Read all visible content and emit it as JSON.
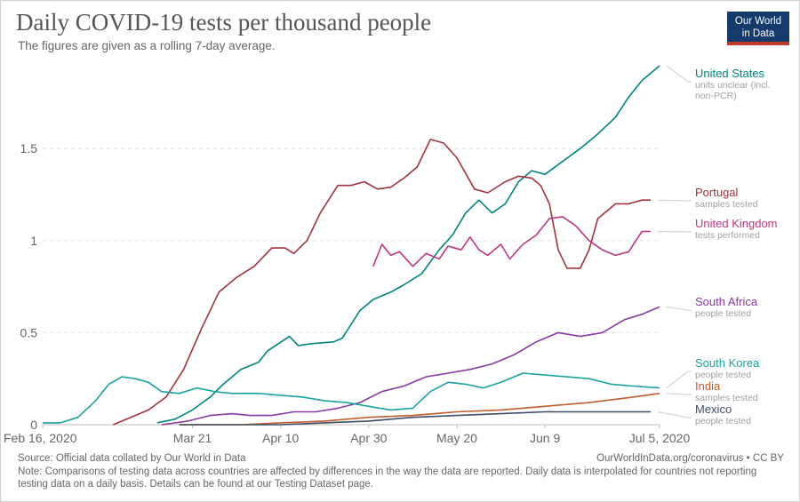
{
  "header": {
    "title": "Daily COVID-19 tests per thousand people",
    "subtitle": "The figures are given as a rolling 7-day average.",
    "logo_line1": "Our World",
    "logo_line2": "in Data"
  },
  "footer": {
    "source": "Source: Official data collated by Our World in Data",
    "url": "OurWorldInData.org/coronavirus • CC BY",
    "note": "Note: Comparisons of testing data across countries are affected by differences in the way the data are reported. Daily data is interpolated for countries not reporting testing data on a daily basis. Details can be found at our Testing Dataset page."
  },
  "chart_data": {
    "type": "line",
    "title": "Daily COVID-19 tests per thousand people",
    "subtitle": "The figures are given as a rolling 7-day average.",
    "xlabel": "",
    "ylabel": "",
    "x_range": [
      "2020-02-16",
      "2020-07-05"
    ],
    "ylim": [
      0,
      1.95
    ],
    "x_ticks": [
      {
        "date": "2020-02-16",
        "label": "Feb 16, 2020"
      },
      {
        "date": "2020-03-21",
        "label": "Mar 21"
      },
      {
        "date": "2020-04-10",
        "label": "Apr 10"
      },
      {
        "date": "2020-04-30",
        "label": "Apr 30"
      },
      {
        "date": "2020-05-20",
        "label": "May 20"
      },
      {
        "date": "2020-06-09",
        "label": "Jun 9"
      },
      {
        "date": "2020-07-05",
        "label": "Jul 5, 2020"
      }
    ],
    "y_ticks": [
      {
        "value": 0,
        "label": "0"
      },
      {
        "value": 0.5,
        "label": "0.5"
      },
      {
        "value": 1,
        "label": "1"
      },
      {
        "value": 1.5,
        "label": "1.5"
      }
    ],
    "grid": "horizontal-dashed",
    "legend": "right (line-end labels)",
    "series": [
      {
        "name": "United States",
        "note": "units unclear (incl. non-PCR)",
        "color": "#00847e",
        "points": [
          [
            "2020-03-13",
            0.01
          ],
          [
            "2020-03-17",
            0.03
          ],
          [
            "2020-03-21",
            0.08
          ],
          [
            "2020-03-25",
            0.15
          ],
          [
            "2020-03-28",
            0.22
          ],
          [
            "2020-04-01",
            0.3
          ],
          [
            "2020-04-05",
            0.34
          ],
          [
            "2020-04-07",
            0.4
          ],
          [
            "2020-04-12",
            0.48
          ],
          [
            "2020-04-14",
            0.43
          ],
          [
            "2020-04-17",
            0.44
          ],
          [
            "2020-04-22",
            0.45
          ],
          [
            "2020-04-24",
            0.47
          ],
          [
            "2020-04-28",
            0.62
          ],
          [
            "2020-05-01",
            0.68
          ],
          [
            "2020-05-05",
            0.72
          ],
          [
            "2020-05-08",
            0.76
          ],
          [
            "2020-05-12",
            0.82
          ],
          [
            "2020-05-16",
            0.95
          ],
          [
            "2020-05-19",
            1.03
          ],
          [
            "2020-05-22",
            1.15
          ],
          [
            "2020-05-25",
            1.22
          ],
          [
            "2020-05-28",
            1.15
          ],
          [
            "2020-05-31",
            1.2
          ],
          [
            "2020-06-03",
            1.32
          ],
          [
            "2020-06-06",
            1.38
          ],
          [
            "2020-06-09",
            1.36
          ],
          [
            "2020-06-13",
            1.43
          ],
          [
            "2020-06-17",
            1.5
          ],
          [
            "2020-06-21",
            1.58
          ],
          [
            "2020-06-25",
            1.67
          ],
          [
            "2020-06-28",
            1.78
          ],
          [
            "2020-07-01",
            1.87
          ],
          [
            "2020-07-05",
            1.95
          ]
        ]
      },
      {
        "name": "Portugal",
        "note": "samples tested",
        "color": "#a2333d",
        "points": [
          [
            "2020-03-03",
            0.0
          ],
          [
            "2020-03-07",
            0.04
          ],
          [
            "2020-03-11",
            0.08
          ],
          [
            "2020-03-15",
            0.15
          ],
          [
            "2020-03-19",
            0.3
          ],
          [
            "2020-03-23",
            0.52
          ],
          [
            "2020-03-27",
            0.72
          ],
          [
            "2020-03-31",
            0.8
          ],
          [
            "2020-04-04",
            0.86
          ],
          [
            "2020-04-08",
            0.96
          ],
          [
            "2020-04-11",
            0.96
          ],
          [
            "2020-04-13",
            0.93
          ],
          [
            "2020-04-16",
            1.0
          ],
          [
            "2020-04-19",
            1.15
          ],
          [
            "2020-04-23",
            1.3
          ],
          [
            "2020-04-26",
            1.3
          ],
          [
            "2020-04-29",
            1.32
          ],
          [
            "2020-05-02",
            1.28
          ],
          [
            "2020-05-05",
            1.29
          ],
          [
            "2020-05-08",
            1.34
          ],
          [
            "2020-05-11",
            1.4
          ],
          [
            "2020-05-14",
            1.55
          ],
          [
            "2020-05-17",
            1.53
          ],
          [
            "2020-05-20",
            1.45
          ],
          [
            "2020-05-24",
            1.28
          ],
          [
            "2020-05-27",
            1.26
          ],
          [
            "2020-05-31",
            1.32
          ],
          [
            "2020-06-03",
            1.35
          ],
          [
            "2020-06-06",
            1.34
          ],
          [
            "2020-06-08",
            1.3
          ],
          [
            "2020-06-10",
            1.2
          ],
          [
            "2020-06-12",
            0.95
          ],
          [
            "2020-06-14",
            0.85
          ],
          [
            "2020-06-17",
            0.85
          ],
          [
            "2020-06-19",
            0.95
          ],
          [
            "2020-06-21",
            1.12
          ],
          [
            "2020-06-25",
            1.2
          ],
          [
            "2020-06-28",
            1.2
          ],
          [
            "2020-07-01",
            1.22
          ],
          [
            "2020-07-03",
            1.22
          ]
        ]
      },
      {
        "name": "United Kingdom",
        "note": "tests performed",
        "color": "#bf3683",
        "points": [
          [
            "2020-05-01",
            0.86
          ],
          [
            "2020-05-03",
            0.98
          ],
          [
            "2020-05-05",
            0.92
          ],
          [
            "2020-05-07",
            0.94
          ],
          [
            "2020-05-10",
            0.86
          ],
          [
            "2020-05-13",
            0.93
          ],
          [
            "2020-05-16",
            0.9
          ],
          [
            "2020-05-18",
            0.97
          ],
          [
            "2020-05-21",
            0.95
          ],
          [
            "2020-05-23",
            1.02
          ],
          [
            "2020-05-25",
            0.95
          ],
          [
            "2020-05-27",
            0.92
          ],
          [
            "2020-05-30",
            0.98
          ],
          [
            "2020-06-01",
            0.9
          ],
          [
            "2020-06-04",
            0.98
          ],
          [
            "2020-06-07",
            1.03
          ],
          [
            "2020-06-10",
            1.12
          ],
          [
            "2020-06-13",
            1.13
          ],
          [
            "2020-06-16",
            1.08
          ],
          [
            "2020-06-19",
            1.0
          ],
          [
            "2020-06-22",
            0.95
          ],
          [
            "2020-06-25",
            0.92
          ],
          [
            "2020-06-28",
            0.94
          ],
          [
            "2020-07-01",
            1.05
          ],
          [
            "2020-07-03",
            1.05
          ]
        ]
      },
      {
        "name": "South Africa",
        "note": "people tested",
        "color": "#883aa3",
        "points": [
          [
            "2020-03-14",
            0.0
          ],
          [
            "2020-03-20",
            0.02
          ],
          [
            "2020-03-25",
            0.05
          ],
          [
            "2020-03-30",
            0.06
          ],
          [
            "2020-04-03",
            0.05
          ],
          [
            "2020-04-08",
            0.05
          ],
          [
            "2020-04-13",
            0.07
          ],
          [
            "2020-04-18",
            0.07
          ],
          [
            "2020-04-23",
            0.09
          ],
          [
            "2020-04-28",
            0.12
          ],
          [
            "2020-05-03",
            0.18
          ],
          [
            "2020-05-08",
            0.21
          ],
          [
            "2020-05-13",
            0.26
          ],
          [
            "2020-05-18",
            0.28
          ],
          [
            "2020-05-23",
            0.3
          ],
          [
            "2020-05-28",
            0.33
          ],
          [
            "2020-06-02",
            0.38
          ],
          [
            "2020-06-07",
            0.45
          ],
          [
            "2020-06-12",
            0.5
          ],
          [
            "2020-06-17",
            0.48
          ],
          [
            "2020-06-22",
            0.5
          ],
          [
            "2020-06-27",
            0.57
          ],
          [
            "2020-07-01",
            0.6
          ],
          [
            "2020-07-05",
            0.64
          ]
        ]
      },
      {
        "name": "South Korea",
        "note": "people tested",
        "color": "#18a2a0",
        "points": [
          [
            "2020-02-16",
            0.01
          ],
          [
            "2020-02-20",
            0.01
          ],
          [
            "2020-02-24",
            0.04
          ],
          [
            "2020-02-28",
            0.13
          ],
          [
            "2020-03-02",
            0.22
          ],
          [
            "2020-03-05",
            0.26
          ],
          [
            "2020-03-08",
            0.25
          ],
          [
            "2020-03-11",
            0.23
          ],
          [
            "2020-03-14",
            0.18
          ],
          [
            "2020-03-18",
            0.17
          ],
          [
            "2020-03-22",
            0.2
          ],
          [
            "2020-03-26",
            0.18
          ],
          [
            "2020-03-30",
            0.17
          ],
          [
            "2020-04-05",
            0.17
          ],
          [
            "2020-04-10",
            0.16
          ],
          [
            "2020-04-15",
            0.15
          ],
          [
            "2020-04-20",
            0.13
          ],
          [
            "2020-04-25",
            0.12
          ],
          [
            "2020-04-30",
            0.1
          ],
          [
            "2020-05-05",
            0.08
          ],
          [
            "2020-05-10",
            0.09
          ],
          [
            "2020-05-14",
            0.18
          ],
          [
            "2020-05-18",
            0.23
          ],
          [
            "2020-05-22",
            0.22
          ],
          [
            "2020-05-26",
            0.2
          ],
          [
            "2020-05-30",
            0.23
          ],
          [
            "2020-06-04",
            0.28
          ],
          [
            "2020-06-09",
            0.27
          ],
          [
            "2020-06-14",
            0.26
          ],
          [
            "2020-06-19",
            0.25
          ],
          [
            "2020-06-24",
            0.22
          ],
          [
            "2020-06-29",
            0.21
          ],
          [
            "2020-07-05",
            0.2
          ]
        ]
      },
      {
        "name": "India",
        "note": "samples tested",
        "color": "#c15c2c",
        "points": [
          [
            "2020-03-18",
            0.0
          ],
          [
            "2020-04-01",
            0.0
          ],
          [
            "2020-04-10",
            0.01
          ],
          [
            "2020-04-20",
            0.02
          ],
          [
            "2020-04-30",
            0.04
          ],
          [
            "2020-05-10",
            0.05
          ],
          [
            "2020-05-20",
            0.07
          ],
          [
            "2020-05-30",
            0.08
          ],
          [
            "2020-06-09",
            0.1
          ],
          [
            "2020-06-19",
            0.12
          ],
          [
            "2020-06-29",
            0.15
          ],
          [
            "2020-07-05",
            0.17
          ]
        ]
      },
      {
        "name": "Mexico",
        "note": "people tested",
        "color": "#3c4e66",
        "points": [
          [
            "2020-03-18",
            0.0
          ],
          [
            "2020-04-10",
            0.0
          ],
          [
            "2020-04-20",
            0.01
          ],
          [
            "2020-04-30",
            0.02
          ],
          [
            "2020-05-10",
            0.04
          ],
          [
            "2020-05-20",
            0.05
          ],
          [
            "2020-05-30",
            0.06
          ],
          [
            "2020-06-09",
            0.07
          ],
          [
            "2020-06-19",
            0.07
          ],
          [
            "2020-06-29",
            0.07
          ],
          [
            "2020-07-03",
            0.07
          ]
        ]
      }
    ]
  }
}
